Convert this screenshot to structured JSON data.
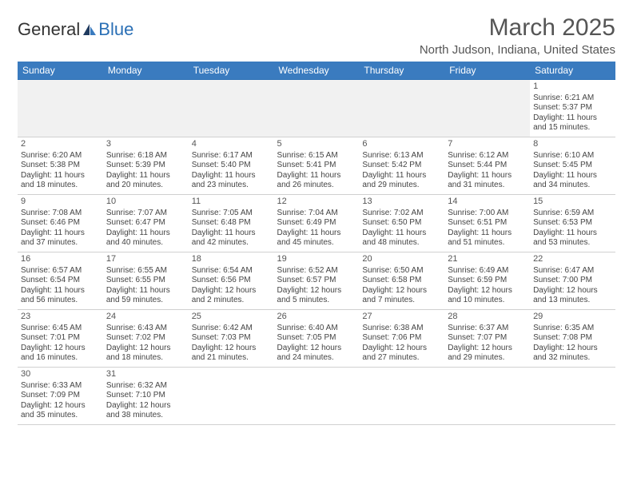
{
  "logo": {
    "text_dark": "General",
    "text_blue": "Blue"
  },
  "header": {
    "month_title": "March 2025",
    "location": "North Judson, Indiana, United States"
  },
  "colors": {
    "header_bg": "#3a7bbf",
    "header_text": "#ffffff",
    "rule": "#2a6fb5",
    "body_text": "#444"
  },
  "day_headers": [
    "Sunday",
    "Monday",
    "Tuesday",
    "Wednesday",
    "Thursday",
    "Friday",
    "Saturday"
  ],
  "weeks": [
    [
      null,
      null,
      null,
      null,
      null,
      null,
      {
        "n": "1",
        "sr": "Sunrise: 6:21 AM",
        "ss": "Sunset: 5:37 PM",
        "dl": "Daylight: 11 hours and 15 minutes."
      }
    ],
    [
      {
        "n": "2",
        "sr": "Sunrise: 6:20 AM",
        "ss": "Sunset: 5:38 PM",
        "dl": "Daylight: 11 hours and 18 minutes."
      },
      {
        "n": "3",
        "sr": "Sunrise: 6:18 AM",
        "ss": "Sunset: 5:39 PM",
        "dl": "Daylight: 11 hours and 20 minutes."
      },
      {
        "n": "4",
        "sr": "Sunrise: 6:17 AM",
        "ss": "Sunset: 5:40 PM",
        "dl": "Daylight: 11 hours and 23 minutes."
      },
      {
        "n": "5",
        "sr": "Sunrise: 6:15 AM",
        "ss": "Sunset: 5:41 PM",
        "dl": "Daylight: 11 hours and 26 minutes."
      },
      {
        "n": "6",
        "sr": "Sunrise: 6:13 AM",
        "ss": "Sunset: 5:42 PM",
        "dl": "Daylight: 11 hours and 29 minutes."
      },
      {
        "n": "7",
        "sr": "Sunrise: 6:12 AM",
        "ss": "Sunset: 5:44 PM",
        "dl": "Daylight: 11 hours and 31 minutes."
      },
      {
        "n": "8",
        "sr": "Sunrise: 6:10 AM",
        "ss": "Sunset: 5:45 PM",
        "dl": "Daylight: 11 hours and 34 minutes."
      }
    ],
    [
      {
        "n": "9",
        "sr": "Sunrise: 7:08 AM",
        "ss": "Sunset: 6:46 PM",
        "dl": "Daylight: 11 hours and 37 minutes."
      },
      {
        "n": "10",
        "sr": "Sunrise: 7:07 AM",
        "ss": "Sunset: 6:47 PM",
        "dl": "Daylight: 11 hours and 40 minutes."
      },
      {
        "n": "11",
        "sr": "Sunrise: 7:05 AM",
        "ss": "Sunset: 6:48 PM",
        "dl": "Daylight: 11 hours and 42 minutes."
      },
      {
        "n": "12",
        "sr": "Sunrise: 7:04 AM",
        "ss": "Sunset: 6:49 PM",
        "dl": "Daylight: 11 hours and 45 minutes."
      },
      {
        "n": "13",
        "sr": "Sunrise: 7:02 AM",
        "ss": "Sunset: 6:50 PM",
        "dl": "Daylight: 11 hours and 48 minutes."
      },
      {
        "n": "14",
        "sr": "Sunrise: 7:00 AM",
        "ss": "Sunset: 6:51 PM",
        "dl": "Daylight: 11 hours and 51 minutes."
      },
      {
        "n": "15",
        "sr": "Sunrise: 6:59 AM",
        "ss": "Sunset: 6:53 PM",
        "dl": "Daylight: 11 hours and 53 minutes."
      }
    ],
    [
      {
        "n": "16",
        "sr": "Sunrise: 6:57 AM",
        "ss": "Sunset: 6:54 PM",
        "dl": "Daylight: 11 hours and 56 minutes."
      },
      {
        "n": "17",
        "sr": "Sunrise: 6:55 AM",
        "ss": "Sunset: 6:55 PM",
        "dl": "Daylight: 11 hours and 59 minutes."
      },
      {
        "n": "18",
        "sr": "Sunrise: 6:54 AM",
        "ss": "Sunset: 6:56 PM",
        "dl": "Daylight: 12 hours and 2 minutes."
      },
      {
        "n": "19",
        "sr": "Sunrise: 6:52 AM",
        "ss": "Sunset: 6:57 PM",
        "dl": "Daylight: 12 hours and 5 minutes."
      },
      {
        "n": "20",
        "sr": "Sunrise: 6:50 AM",
        "ss": "Sunset: 6:58 PM",
        "dl": "Daylight: 12 hours and 7 minutes."
      },
      {
        "n": "21",
        "sr": "Sunrise: 6:49 AM",
        "ss": "Sunset: 6:59 PM",
        "dl": "Daylight: 12 hours and 10 minutes."
      },
      {
        "n": "22",
        "sr": "Sunrise: 6:47 AM",
        "ss": "Sunset: 7:00 PM",
        "dl": "Daylight: 12 hours and 13 minutes."
      }
    ],
    [
      {
        "n": "23",
        "sr": "Sunrise: 6:45 AM",
        "ss": "Sunset: 7:01 PM",
        "dl": "Daylight: 12 hours and 16 minutes."
      },
      {
        "n": "24",
        "sr": "Sunrise: 6:43 AM",
        "ss": "Sunset: 7:02 PM",
        "dl": "Daylight: 12 hours and 18 minutes."
      },
      {
        "n": "25",
        "sr": "Sunrise: 6:42 AM",
        "ss": "Sunset: 7:03 PM",
        "dl": "Daylight: 12 hours and 21 minutes."
      },
      {
        "n": "26",
        "sr": "Sunrise: 6:40 AM",
        "ss": "Sunset: 7:05 PM",
        "dl": "Daylight: 12 hours and 24 minutes."
      },
      {
        "n": "27",
        "sr": "Sunrise: 6:38 AM",
        "ss": "Sunset: 7:06 PM",
        "dl": "Daylight: 12 hours and 27 minutes."
      },
      {
        "n": "28",
        "sr": "Sunrise: 6:37 AM",
        "ss": "Sunset: 7:07 PM",
        "dl": "Daylight: 12 hours and 29 minutes."
      },
      {
        "n": "29",
        "sr": "Sunrise: 6:35 AM",
        "ss": "Sunset: 7:08 PM",
        "dl": "Daylight: 12 hours and 32 minutes."
      }
    ],
    [
      {
        "n": "30",
        "sr": "Sunrise: 6:33 AM",
        "ss": "Sunset: 7:09 PM",
        "dl": "Daylight: 12 hours and 35 minutes."
      },
      {
        "n": "31",
        "sr": "Sunrise: 6:32 AM",
        "ss": "Sunset: 7:10 PM",
        "dl": "Daylight: 12 hours and 38 minutes."
      },
      null,
      null,
      null,
      null,
      null
    ]
  ]
}
